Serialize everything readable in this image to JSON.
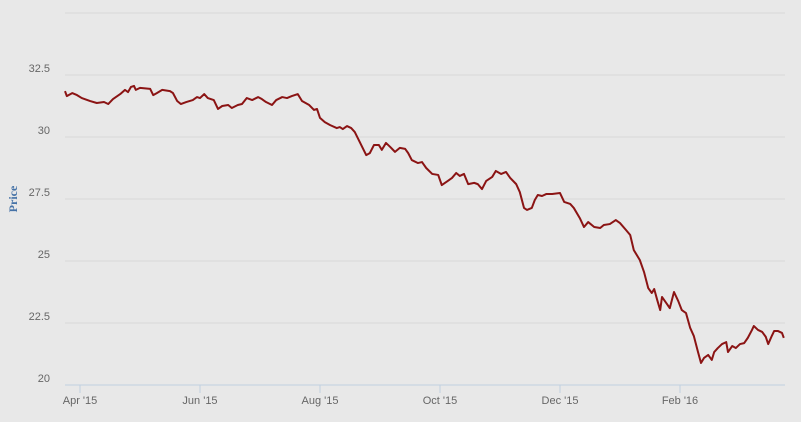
{
  "chart_data": {
    "type": "line",
    "y_label": "Price",
    "x": [
      -0.25,
      -0.22,
      -0.13,
      -0.05,
      0.03,
      0.17,
      0.28,
      0.4,
      0.47,
      0.55,
      0.67,
      0.75,
      0.8,
      0.85,
      0.9,
      0.93,
      1.0,
      1.17,
      1.22,
      1.28,
      1.37,
      1.5,
      1.55,
      1.62,
      1.68,
      1.77,
      1.88,
      1.95,
      2.0,
      2.07,
      2.13,
      2.23,
      2.3,
      2.37,
      2.47,
      2.53,
      2.63,
      2.7,
      2.78,
      2.87,
      2.97,
      3.03,
      3.1,
      3.2,
      3.27,
      3.37,
      3.45,
      3.53,
      3.63,
      3.7,
      3.82,
      3.9,
      3.95,
      4.0,
      4.08,
      4.17,
      4.28,
      4.33,
      4.38,
      4.45,
      4.52,
      4.58,
      4.67,
      4.77,
      4.83,
      4.9,
      4.98,
      5.03,
      5.1,
      5.17,
      5.25,
      5.33,
      5.42,
      5.47,
      5.53,
      5.63,
      5.7,
      5.77,
      5.87,
      5.97,
      6.03,
      6.13,
      6.2,
      6.27,
      6.33,
      6.4,
      6.47,
      6.57,
      6.63,
      6.7,
      6.77,
      6.87,
      6.93,
      7.02,
      7.1,
      7.17,
      7.27,
      7.33,
      7.4,
      7.45,
      7.53,
      7.58,
      7.63,
      7.7,
      7.77,
      7.87,
      8.0,
      8.07,
      8.17,
      8.23,
      8.33,
      8.4,
      8.47,
      8.57,
      8.67,
      8.73,
      8.83,
      8.93,
      9.0,
      9.1,
      9.17,
      9.23,
      9.33,
      9.4,
      9.47,
      9.53,
      9.57,
      9.62,
      9.67,
      9.7,
      9.77,
      9.83,
      9.9,
      9.97,
      10.03,
      10.1,
      10.17,
      10.23,
      10.3,
      10.35,
      10.4,
      10.47,
      10.53,
      10.57,
      10.63,
      10.7,
      10.77,
      10.8,
      10.87,
      10.93,
      11.0,
      11.07,
      11.13,
      11.2,
      11.23,
      11.3,
      11.37,
      11.43,
      11.47,
      11.53,
      11.57,
      11.63,
      11.7,
      11.73
    ],
    "series": [
      {
        "name": "Price",
        "color": "#8b1414",
        "values": [
          31.85,
          31.65,
          31.77,
          31.69,
          31.57,
          31.45,
          31.37,
          31.41,
          31.33,
          31.53,
          31.73,
          31.9,
          31.81,
          32.02,
          32.06,
          31.9,
          31.98,
          31.94,
          31.69,
          31.77,
          31.9,
          31.85,
          31.77,
          31.45,
          31.33,
          31.41,
          31.49,
          31.61,
          31.57,
          31.73,
          31.57,
          31.49,
          31.13,
          31.25,
          31.29,
          31.17,
          31.29,
          31.33,
          31.57,
          31.49,
          31.61,
          31.53,
          31.41,
          31.29,
          31.49,
          31.61,
          31.57,
          31.65,
          31.73,
          31.45,
          31.29,
          31.09,
          31.13,
          30.77,
          30.6,
          30.48,
          30.36,
          30.4,
          30.32,
          30.44,
          30.36,
          30.2,
          29.76,
          29.27,
          29.35,
          29.68,
          29.68,
          29.48,
          29.76,
          29.6,
          29.4,
          29.56,
          29.52,
          29.35,
          29.07,
          28.95,
          28.99,
          28.75,
          28.51,
          28.47,
          28.06,
          28.23,
          28.35,
          28.55,
          28.43,
          28.51,
          28.1,
          28.15,
          28.1,
          27.9,
          28.23,
          28.39,
          28.63,
          28.51,
          28.59,
          28.35,
          28.1,
          27.78,
          27.14,
          27.06,
          27.14,
          27.46,
          27.66,
          27.62,
          27.7,
          27.7,
          27.74,
          27.38,
          27.3,
          27.14,
          26.73,
          26.37,
          26.57,
          26.37,
          26.33,
          26.45,
          26.49,
          26.65,
          26.53,
          26.25,
          26.05,
          25.44,
          25.04,
          24.56,
          23.91,
          23.71,
          23.87,
          23.43,
          23.02,
          23.55,
          23.31,
          23.1,
          23.75,
          23.39,
          23.02,
          22.9,
          22.3,
          21.98,
          21.33,
          20.89,
          21.09,
          21.21,
          21.01,
          21.33,
          21.49,
          21.65,
          21.73,
          21.33,
          21.57,
          21.49,
          21.65,
          21.69,
          21.9,
          22.22,
          22.38,
          22.22,
          22.14,
          21.94,
          21.65,
          21.98,
          22.18,
          22.18,
          22.1,
          21.9
        ]
      }
    ],
    "xlim": [
      -0.25,
      11.75
    ],
    "xticks": [
      {
        "value": 0,
        "label": "Apr '15"
      },
      {
        "value": 2,
        "label": "Jun '15"
      },
      {
        "value": 4,
        "label": "Aug '15"
      },
      {
        "value": 6,
        "label": "Oct '15"
      },
      {
        "value": 8,
        "label": "Dec '15"
      },
      {
        "value": 10,
        "label": "Feb '16"
      }
    ],
    "ylim": [
      20,
      35
    ],
    "yticks": [
      20,
      22.5,
      25,
      27.5,
      30,
      32.5
    ],
    "grid": true
  }
}
